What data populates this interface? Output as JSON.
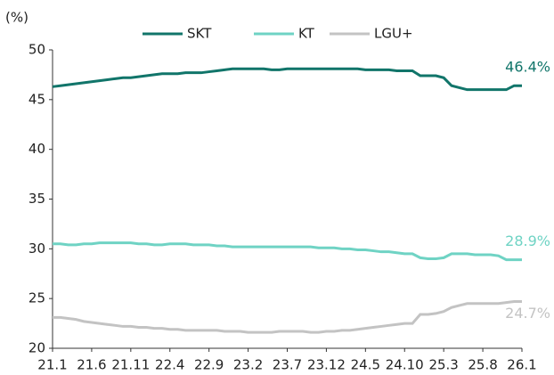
{
  "chart_data": {
    "type": "line",
    "y_label": "(%)",
    "categories": [
      "21.1",
      null,
      null,
      null,
      null,
      "21.6",
      null,
      null,
      null,
      null,
      "21.11",
      null,
      null,
      null,
      null,
      "22.4",
      null,
      null,
      null,
      null,
      "22.9",
      null,
      null,
      null,
      null,
      "23.2",
      null,
      null,
      null,
      null,
      "23.7",
      null,
      null,
      null,
      null,
      "23.12",
      null,
      null,
      null,
      null,
      "24.5",
      null,
      null,
      null,
      null,
      "24.10",
      null,
      null,
      null,
      null,
      "25.3",
      null,
      null,
      null,
      null,
      "25.8",
      null,
      null,
      null,
      null,
      "26.1"
    ],
    "series": [
      {
        "name": "SKT",
        "color": "#11756a",
        "values": [
          46.3,
          46.4,
          46.5,
          46.6,
          46.7,
          46.8,
          46.9,
          47.0,
          47.1,
          47.2,
          47.2,
          47.3,
          47.4,
          47.5,
          47.6,
          47.6,
          47.6,
          47.7,
          47.7,
          47.7,
          47.8,
          47.9,
          48.0,
          48.1,
          48.1,
          48.1,
          48.1,
          48.1,
          48.0,
          48.0,
          48.1,
          48.1,
          48.1,
          48.1,
          48.1,
          48.1,
          48.1,
          48.1,
          48.1,
          48.1,
          48.0,
          48.0,
          48.0,
          48.0,
          47.9,
          47.9,
          47.9,
          47.4,
          47.4,
          47.4,
          47.2,
          46.4,
          46.2,
          46.0,
          46.0,
          46.0,
          46.0,
          46.0,
          46.0,
          46.4,
          46.4
        ],
        "value_labels": [
          null,
          null,
          null,
          null,
          null,
          null,
          null,
          null,
          null,
          null,
          null,
          null,
          null,
          null,
          null,
          null,
          null,
          null,
          null,
          null,
          null,
          null,
          null,
          null,
          null,
          null,
          null,
          null,
          null,
          null,
          null,
          null,
          null,
          null,
          null,
          null,
          null,
          null,
          null,
          null,
          null,
          null,
          null,
          null,
          null,
          null,
          null,
          null,
          null,
          null,
          null,
          null,
          null,
          null,
          null,
          null,
          null,
          null,
          null,
          null,
          "46.4%"
        ]
      },
      {
        "name": "KT",
        "color": "#6fd3c4",
        "values": [
          30.5,
          30.5,
          30.4,
          30.4,
          30.5,
          30.5,
          30.6,
          30.6,
          30.6,
          30.6,
          30.6,
          30.5,
          30.5,
          30.4,
          30.4,
          30.5,
          30.5,
          30.5,
          30.4,
          30.4,
          30.4,
          30.3,
          30.3,
          30.2,
          30.2,
          30.2,
          30.2,
          30.2,
          30.2,
          30.2,
          30.2,
          30.2,
          30.2,
          30.2,
          30.1,
          30.1,
          30.1,
          30.0,
          30.0,
          29.9,
          29.9,
          29.8,
          29.7,
          29.7,
          29.6,
          29.5,
          29.5,
          29.1,
          29.0,
          29.0,
          29.1,
          29.5,
          29.5,
          29.5,
          29.4,
          29.4,
          29.4,
          29.3,
          28.9,
          28.9,
          28.9
        ],
        "value_labels": [
          null,
          null,
          null,
          null,
          null,
          null,
          null,
          null,
          null,
          null,
          null,
          null,
          null,
          null,
          null,
          null,
          null,
          null,
          null,
          null,
          null,
          null,
          null,
          null,
          null,
          null,
          null,
          null,
          null,
          null,
          null,
          null,
          null,
          null,
          null,
          null,
          null,
          null,
          null,
          null,
          null,
          null,
          null,
          null,
          null,
          null,
          null,
          null,
          null,
          null,
          null,
          null,
          null,
          null,
          null,
          null,
          null,
          null,
          null,
          null,
          "28.9%"
        ]
      },
      {
        "name": "LGU+",
        "color": "#c3c3c3",
        "values": [
          23.1,
          23.1,
          23.0,
          22.9,
          22.7,
          22.6,
          22.5,
          22.4,
          22.3,
          22.2,
          22.2,
          22.1,
          22.1,
          22.0,
          22.0,
          21.9,
          21.9,
          21.8,
          21.8,
          21.8,
          21.8,
          21.8,
          21.7,
          21.7,
          21.7,
          21.6,
          21.6,
          21.6,
          21.6,
          21.7,
          21.7,
          21.7,
          21.7,
          21.6,
          21.6,
          21.7,
          21.7,
          21.8,
          21.8,
          21.9,
          22.0,
          22.1,
          22.2,
          22.3,
          22.4,
          22.5,
          22.5,
          23.4,
          23.4,
          23.5,
          23.7,
          24.1,
          24.3,
          24.5,
          24.5,
          24.5,
          24.5,
          24.5,
          24.6,
          24.7,
          24.7
        ],
        "value_labels": [
          null,
          null,
          null,
          null,
          null,
          null,
          null,
          null,
          null,
          null,
          null,
          null,
          null,
          null,
          null,
          null,
          null,
          null,
          null,
          null,
          null,
          null,
          null,
          null,
          null,
          null,
          null,
          null,
          null,
          null,
          null,
          null,
          null,
          null,
          null,
          null,
          null,
          null,
          null,
          null,
          null,
          null,
          null,
          null,
          null,
          null,
          null,
          null,
          null,
          null,
          null,
          null,
          null,
          null,
          null,
          null,
          null,
          null,
          null,
          null,
          "24.7%"
        ]
      }
    ],
    "ylim": [
      20,
      50
    ],
    "yticks": [
      20,
      25,
      30,
      35,
      40,
      45,
      50
    ],
    "grid": false,
    "legend": "top"
  }
}
